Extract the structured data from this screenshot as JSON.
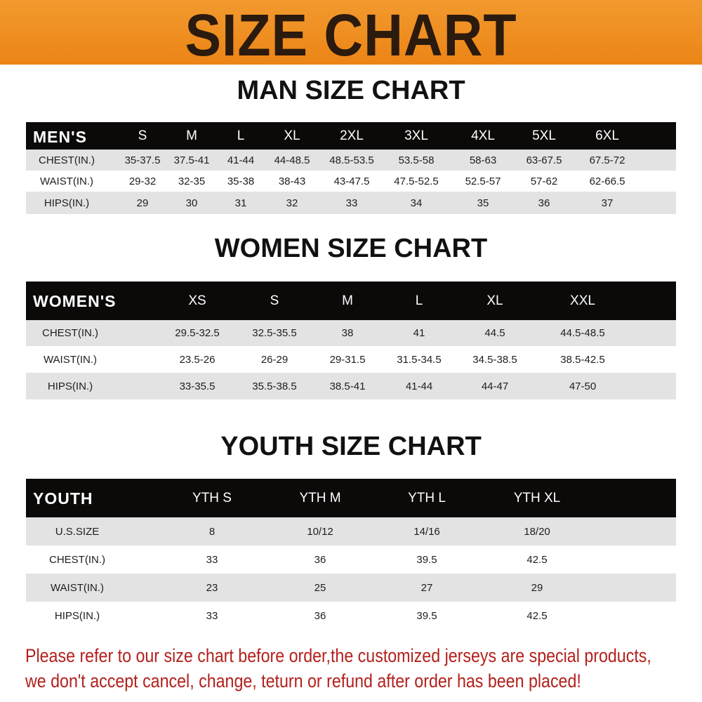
{
  "banner_title": "SIZE CHART",
  "men": {
    "title": "MAN SIZE CHART",
    "header_label": "MEN'S",
    "sizes": [
      "S",
      "M",
      "L",
      "XL",
      "2XL",
      "3XL",
      "4XL",
      "5XL",
      "6XL"
    ],
    "rows": [
      {
        "label": "CHEST(IN.)",
        "values": [
          "35-37.5",
          "37.5-41",
          "41-44",
          "44-48.5",
          "48.5-53.5",
          "53.5-58",
          "58-63",
          "63-67.5",
          "67.5-72"
        ]
      },
      {
        "label": "WAIST(IN.)",
        "values": [
          "29-32",
          "32-35",
          "35-38",
          "38-43",
          "43-47.5",
          "47.5-52.5",
          "52.5-57",
          "57-62",
          "62-66.5"
        ]
      },
      {
        "label": "HIPS(IN.)",
        "values": [
          "29",
          "30",
          "31",
          "32",
          "33",
          "34",
          "35",
          "36",
          "37"
        ]
      }
    ]
  },
  "women": {
    "title": "WOMEN SIZE CHART",
    "header_label": "WOMEN'S",
    "sizes": [
      "XS",
      "S",
      "M",
      "L",
      "XL",
      "XXL"
    ],
    "rows": [
      {
        "label": "CHEST(IN.)",
        "values": [
          "29.5-32.5",
          "32.5-35.5",
          "38",
          "41",
          "44.5",
          "44.5-48.5"
        ]
      },
      {
        "label": "WAIST(IN.)",
        "values": [
          "23.5-26",
          "26-29",
          "29-31.5",
          "31.5-34.5",
          "34.5-38.5",
          "38.5-42.5"
        ]
      },
      {
        "label": "HIPS(IN.)",
        "values": [
          "33-35.5",
          "35.5-38.5",
          "38.5-41",
          "41-44",
          "44-47",
          "47-50"
        ]
      }
    ]
  },
  "youth": {
    "title": "YOUTH SIZE CHART",
    "header_label": "YOUTH",
    "sizes": [
      "YTH S",
      "YTH M",
      "YTH L",
      "YTH XL"
    ],
    "rows": [
      {
        "label": "U.S.SIZE",
        "values": [
          "8",
          "10/12",
          "14/16",
          "18/20"
        ]
      },
      {
        "label": "CHEST(IN.)",
        "values": [
          "33",
          "36",
          "39.5",
          "42.5"
        ]
      },
      {
        "label": "WAIST(IN.)",
        "values": [
          "23",
          "25",
          "27",
          "29"
        ]
      },
      {
        "label": "HIPS(IN.)",
        "values": [
          "33",
          "36",
          "39.5",
          "42.5"
        ]
      }
    ]
  },
  "notice": [
    "Please refer to our size chart before order,the customized jerseys are special products,",
    "we don't accept cancel, change, teturn or refund after order has been placed!"
  ],
  "colors": {
    "banner": "#ec8416",
    "header": "#0c0909",
    "stripe": "#e3e3e3",
    "notice": "#b3201c"
  }
}
